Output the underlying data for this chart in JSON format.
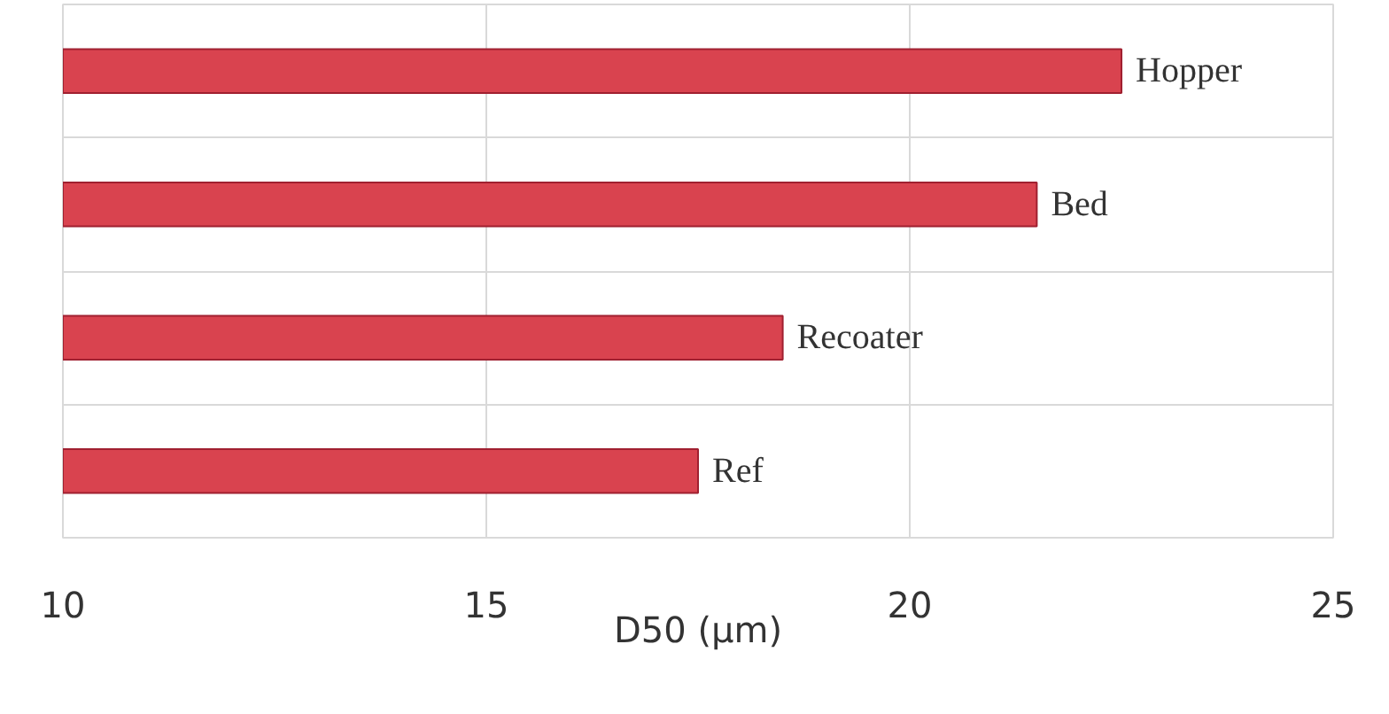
{
  "chart_data": {
    "type": "bar",
    "orientation": "horizontal",
    "xlabel": "D50 (µm)",
    "categories": [
      "Hopper",
      "Bed",
      "Recoater",
      "Ref"
    ],
    "values": [
      22.5,
      21.5,
      18.5,
      17.5
    ],
    "color": "#d9434f",
    "xlim": [
      10,
      25
    ],
    "xticks": [
      10,
      15,
      20,
      25
    ],
    "grid": true
  }
}
